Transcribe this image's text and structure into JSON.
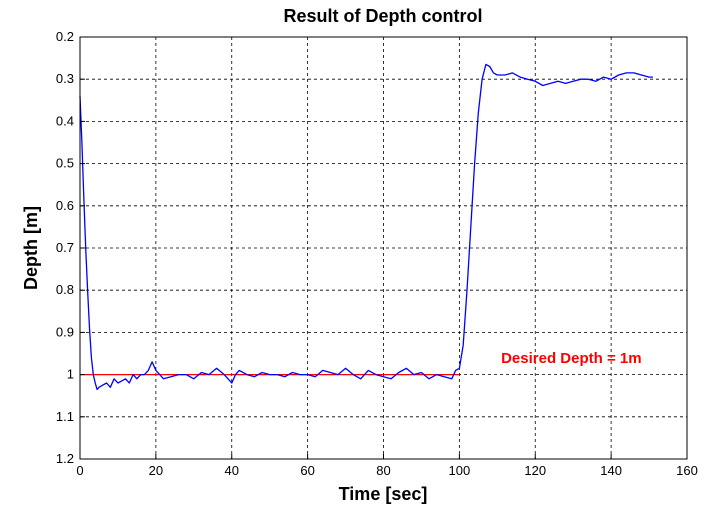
{
  "chart_data": {
    "type": "line",
    "title": "Result of Depth control",
    "xlabel": "Time [sec]",
    "ylabel": "Depth [m]",
    "xlim": [
      0,
      160
    ],
    "ylim": [
      0.2,
      1.2
    ],
    "y_reversed": true,
    "grid": true,
    "xticks": [
      0,
      20,
      40,
      60,
      80,
      100,
      120,
      140,
      160
    ],
    "xtick_labels": [
      "0",
      "20",
      "40",
      "60",
      "80",
      "100",
      "120",
      "140",
      "160"
    ],
    "yticks": [
      0.2,
      0.3,
      0.4,
      0.5,
      0.6,
      0.7,
      0.8,
      0.9,
      1.0,
      1.1,
      1.2
    ],
    "ytick_labels": [
      "0.2",
      "0.3",
      "0.4",
      "0.5",
      "0.6",
      "0.7",
      "0.8",
      "0.9",
      "1",
      "1.1",
      "1.2"
    ],
    "series": [
      {
        "color": "#0000ff",
        "x": [
          0,
          0.5,
          1,
          1.5,
          2,
          2.5,
          3,
          3.5,
          4,
          4.5,
          5,
          6,
          7,
          8,
          9,
          10,
          11,
          12,
          13,
          14,
          15,
          16,
          17,
          18,
          19,
          20,
          21,
          22,
          24,
          26,
          28,
          30,
          32,
          34,
          36,
          38,
          40,
          41,
          42,
          44,
          46,
          48,
          50,
          52,
          54,
          56,
          58,
          60,
          62,
          64,
          66,
          68,
          70,
          72,
          74,
          76,
          78,
          80,
          82,
          84,
          86,
          88,
          90,
          92,
          94,
          96,
          98,
          99,
          100,
          101,
          102,
          103,
          104,
          105,
          106,
          107,
          108,
          109,
          110,
          112,
          114,
          116,
          118,
          120,
          122,
          124,
          126,
          128,
          130,
          132,
          134,
          136,
          138,
          140,
          142,
          144,
          146,
          148,
          150,
          151
        ],
        "y": [
          0.34,
          0.45,
          0.58,
          0.7,
          0.8,
          0.89,
          0.96,
          1.0,
          1.02,
          1.035,
          1.03,
          1.025,
          1.02,
          1.03,
          1.01,
          1.02,
          1.015,
          1.01,
          1.02,
          1.0,
          1.01,
          1.0,
          1.0,
          0.99,
          0.97,
          0.99,
          1.0,
          1.01,
          1.005,
          1.0,
          1.0,
          1.01,
          0.995,
          1.0,
          0.985,
          1.0,
          1.02,
          1.0,
          0.99,
          1.0,
          1.005,
          0.995,
          1.0,
          1.0,
          1.005,
          0.995,
          1.0,
          1.0,
          1.005,
          0.99,
          0.995,
          1.0,
          0.985,
          1.0,
          1.01,
          0.99,
          1.0,
          1.005,
          1.01,
          0.995,
          0.985,
          1.0,
          0.995,
          1.01,
          1.0,
          1.005,
          1.01,
          0.99,
          0.985,
          0.93,
          0.8,
          0.65,
          0.5,
          0.38,
          0.3,
          0.265,
          0.27,
          0.285,
          0.29,
          0.29,
          0.285,
          0.295,
          0.3,
          0.305,
          0.315,
          0.31,
          0.305,
          0.31,
          0.305,
          0.3,
          0.3,
          0.305,
          0.295,
          0.3,
          0.29,
          0.285,
          0.285,
          0.29,
          0.295,
          0.295
        ]
      },
      {
        "color": "#ff0000",
        "x": [
          0,
          100
        ],
        "y": [
          1.0,
          1.0
        ]
      }
    ],
    "annotations": [
      {
        "text": "Desired Depth = 1m",
        "x": 111,
        "y": 0.98,
        "color": "#ff0000"
      }
    ]
  }
}
